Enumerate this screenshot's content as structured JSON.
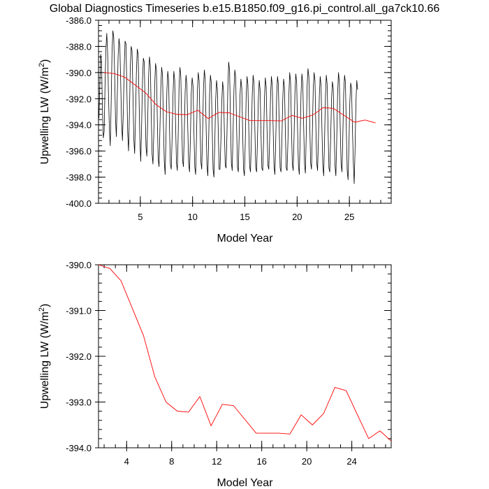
{
  "title": "Global Diagnostics Timeseries b.e15.B1850.f09_g16.pi_control.all_ga7ck10.66",
  "chart_data": [
    {
      "type": "line",
      "xlabel": "Model Year",
      "ylabel": "Upwelling LW (W/m",
      "ylabel_sup": "2",
      "ylabel_close": ")",
      "xlim": [
        1,
        29
      ],
      "ylim": [
        -400,
        -386
      ],
      "xticks": [
        5,
        10,
        15,
        20,
        25
      ],
      "yticks": [
        -400,
        -398,
        -396,
        -394,
        -392,
        -390,
        -388,
        -386
      ],
      "ytick_labels": [
        "-400.0",
        "-398.0",
        "-396.0",
        "-394.0",
        "-392.0",
        "-390.0",
        "-388.0",
        "-386.0"
      ],
      "series": [
        {
          "kind": "monthly",
          "color": "#000000",
          "x_start": 1.0417,
          "x_step": 0.08333,
          "values": [
            -393.5,
            -391.0,
            -388.6,
            -389.2,
            -392.8,
            -395.0,
            -394.5,
            -391.0,
            -388.2,
            -387.0,
            -388.5,
            -391.8,
            -394.3,
            -395.6,
            -392.5,
            -388.5,
            -386.8,
            -387.3,
            -390.0,
            -393.5,
            -394.9,
            -392.0,
            -388.8,
            -387.4,
            -388.0,
            -390.8,
            -393.8,
            -395.2,
            -393.0,
            -389.6,
            -387.6,
            -387.8,
            -391.0,
            -394.6,
            -396.0,
            -393.2,
            -389.6,
            -388.0,
            -388.3,
            -391.5,
            -395.0,
            -396.2,
            -393.4,
            -390.0,
            -388.2,
            -388.6,
            -391.8,
            -395.2,
            -396.8,
            -394.0,
            -390.6,
            -388.9,
            -389.2,
            -392.6,
            -395.7,
            -396.4,
            -393.6,
            -390.3,
            -388.8,
            -389.5,
            -393.0,
            -396.2,
            -397.0,
            -394.6,
            -391.0,
            -389.3,
            -389.8,
            -393.5,
            -396.6,
            -397.2,
            -394.4,
            -391.2,
            -389.6,
            -390.2,
            -393.8,
            -396.8,
            -397.8,
            -394.8,
            -391.4,
            -389.9,
            -390.6,
            -394.2,
            -397.0,
            -397.4,
            -395.0,
            -391.8,
            -389.9,
            -390.6,
            -394.0,
            -396.9,
            -397.5,
            -394.7,
            -391.0,
            -389.6,
            -390.3,
            -393.8,
            -396.7,
            -397.2,
            -394.5,
            -391.4,
            -390.2,
            -391.0,
            -394.3,
            -397.0,
            -397.6,
            -395.0,
            -391.6,
            -390.4,
            -391.0,
            -394.4,
            -397.2,
            -397.8,
            -395.0,
            -391.4,
            -390.0,
            -390.6,
            -393.8,
            -396.8,
            -397.4,
            -394.6,
            -391.2,
            -389.8,
            -390.5,
            -394.0,
            -397.1,
            -397.9,
            -395.0,
            -391.7,
            -390.2,
            -390.8,
            -394.2,
            -397.4,
            -398.0,
            -395.4,
            -392.1,
            -390.6,
            -391.3,
            -394.6,
            -397.4,
            -397.4,
            -395.2,
            -392.3,
            -390.7,
            -391.4,
            -394.5,
            -397.1,
            -397.3,
            -394.6,
            -391.0,
            -389.2,
            -389.9,
            -393.6,
            -396.9,
            -397.5,
            -394.5,
            -391.3,
            -389.8,
            -390.4,
            -394.0,
            -397.2,
            -397.6,
            -394.7,
            -391.7,
            -390.5,
            -391.2,
            -394.6,
            -397.4,
            -397.9,
            -395.3,
            -391.9,
            -390.3,
            -390.9,
            -394.3,
            -397.2,
            -397.6,
            -395.0,
            -391.7,
            -390.2,
            -390.8,
            -394.3,
            -397.3,
            -397.6,
            -395.2,
            -392.1,
            -390.6,
            -391.3,
            -394.5,
            -397.3,
            -397.5,
            -395.3,
            -392.0,
            -390.4,
            -391.1,
            -394.4,
            -397.1,
            -397.4,
            -395.0,
            -391.8,
            -390.3,
            -391.0,
            -394.3,
            -397.2,
            -397.8,
            -395.1,
            -391.8,
            -390.3,
            -390.9,
            -394.3,
            -397.3,
            -397.6,
            -395.3,
            -392.1,
            -390.5,
            -391.1,
            -394.5,
            -397.3,
            -397.5,
            -395.2,
            -391.8,
            -390.0,
            -390.7,
            -394.1,
            -397.0,
            -397.5,
            -394.9,
            -391.6,
            -390.1,
            -390.8,
            -394.2,
            -397.1,
            -397.8,
            -395.0,
            -391.6,
            -390.1,
            -390.8,
            -394.0,
            -397.0,
            -397.7,
            -394.7,
            -391.0,
            -389.7,
            -390.3,
            -393.9,
            -396.9,
            -397.4,
            -394.6,
            -391.3,
            -390.0,
            -390.6,
            -394.0,
            -396.9,
            -397.5,
            -395.0,
            -391.8,
            -390.3,
            -391.0,
            -394.3,
            -397.1,
            -397.9,
            -395.2,
            -391.9,
            -390.2,
            -390.9,
            -394.2,
            -397.3,
            -397.6,
            -395.1,
            -392.1,
            -390.7,
            -391.2,
            -394.4,
            -397.1,
            -397.9,
            -395.1,
            -391.6,
            -390.0,
            -390.7,
            -394.2,
            -397.0,
            -397.6,
            -394.8,
            -391.5,
            -390.2,
            -390.8,
            -394.3,
            -397.5,
            -398.2,
            -395.5,
            -392.3,
            -390.8,
            -391.2,
            -394.2,
            -396.8,
            -398.5,
            -396.0,
            -392.4,
            -390.6,
            -391.3
          ]
        },
        {
          "kind": "annual",
          "color": "#ff0000",
          "x": [
            1.5,
            2.5,
            3.5,
            4.5,
            5.5,
            6.5,
            7.5,
            8.5,
            9.5,
            10.5,
            11.5,
            12.5,
            13.5,
            14.5,
            15.5,
            16.5,
            17.5,
            18.5,
            19.5,
            20.5,
            21.5,
            22.5,
            23.5,
            24.5,
            25.5,
            26.5,
            27.5
          ],
          "values": [
            -390.0,
            -390.08,
            -390.35,
            -390.95,
            -391.55,
            -392.45,
            -393.0,
            -393.2,
            -393.22,
            -392.88,
            -393.52,
            -393.05,
            -393.08,
            -393.38,
            -393.68,
            -393.68,
            -393.68,
            -393.7,
            -393.28,
            -393.5,
            -393.25,
            -392.68,
            -392.75,
            -393.28,
            -393.8,
            -393.63,
            -393.85
          ]
        }
      ]
    },
    {
      "type": "line",
      "xlabel": "Model Year",
      "ylabel": "Upwelling LW (W/m",
      "ylabel_sup": "2",
      "ylabel_close": ")",
      "xlim": [
        1.5,
        27.5
      ],
      "ylim": [
        -394,
        -390
      ],
      "xticks": [
        4,
        8,
        12,
        16,
        20,
        24
      ],
      "yticks": [
        -394,
        -393,
        -392,
        -391,
        -390
      ],
      "ytick_labels": [
        "-394.0",
        "-393.0",
        "-392.0",
        "-391.0",
        "-390.0"
      ],
      "series": [
        {
          "kind": "annual",
          "color": "#ff0000",
          "x": [
            1.5,
            2.5,
            3.5,
            4.5,
            5.5,
            6.5,
            7.5,
            8.5,
            9.5,
            10.5,
            11.5,
            12.5,
            13.5,
            14.5,
            15.5,
            16.5,
            17.5,
            18.5,
            19.5,
            20.5,
            21.5,
            22.5,
            23.5,
            24.5,
            25.5,
            26.5,
            27.5
          ],
          "values": [
            -390.0,
            -390.08,
            -390.35,
            -390.95,
            -391.55,
            -392.45,
            -393.0,
            -393.2,
            -393.22,
            -392.88,
            -393.52,
            -393.05,
            -393.08,
            -393.38,
            -393.68,
            -393.68,
            -393.68,
            -393.7,
            -393.28,
            -393.5,
            -393.25,
            -392.68,
            -392.75,
            -393.28,
            -393.8,
            -393.63,
            -393.85
          ]
        }
      ]
    }
  ]
}
